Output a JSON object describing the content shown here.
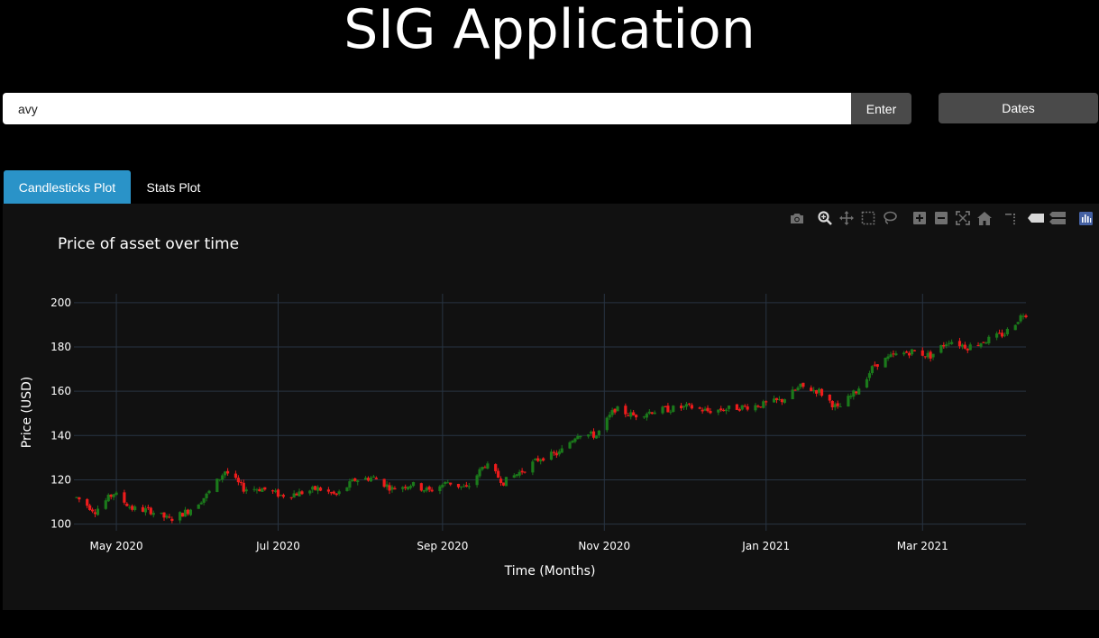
{
  "header": {
    "title": "SIG Application"
  },
  "search": {
    "value": "avy",
    "enter_label": "Enter"
  },
  "dates_button": {
    "label": "Dates"
  },
  "tabs": [
    {
      "label": "Candlesticks Plot",
      "active": true
    },
    {
      "label": "Stats Plot",
      "active": false
    }
  ],
  "colors": {
    "increasing": "#1b7a1b",
    "decreasing": "#ee1c1c",
    "tab_active": "#2a93c8",
    "plot_bg": "#111111",
    "grid": "#283442"
  },
  "modebar": {
    "icons": [
      "camera-icon",
      "zoom-icon",
      "pan-icon",
      "box-select-icon",
      "lasso-select-icon",
      "zoom-in-icon",
      "zoom-out-icon",
      "autoscale-icon",
      "reset-axes-icon",
      "spike-lines-icon",
      "hover-closest-icon",
      "hover-compare-icon",
      "plotly-logo-icon"
    ]
  },
  "chart_data": {
    "type": "candlestick",
    "title": "Price of asset over time",
    "xlabel": "Time (Months)",
    "ylabel": "Price (USD)",
    "x_tick_labels": [
      "May 2020",
      "Jul 2020",
      "Sep 2020",
      "Nov 2020",
      "Jan 2021",
      "Mar 2021"
    ],
    "x_tick_dates": [
      "2020-05-01",
      "2020-07-01",
      "2020-09-01",
      "2020-11-01",
      "2021-01-01",
      "2021-03-01"
    ],
    "y_ticks": [
      100,
      120,
      140,
      160,
      180,
      200
    ],
    "xlim": [
      "2020-04-15",
      "2021-04-09"
    ],
    "ylim": [
      97,
      204
    ],
    "grid": true,
    "legend": "none",
    "anchors": [
      [
        "2020-04-16",
        112
      ],
      [
        "2020-04-23",
        106
      ],
      [
        "2020-04-30",
        114
      ],
      [
        "2020-05-07",
        107
      ],
      [
        "2020-05-14",
        106
      ],
      [
        "2020-05-21",
        102
      ],
      [
        "2020-05-28",
        106
      ],
      [
        "2020-06-04",
        113
      ],
      [
        "2020-06-11",
        124
      ],
      [
        "2020-06-18",
        116
      ],
      [
        "2020-06-25",
        116
      ],
      [
        "2020-07-02",
        113
      ],
      [
        "2020-07-09",
        114
      ],
      [
        "2020-07-16",
        116
      ],
      [
        "2020-07-23",
        113
      ],
      [
        "2020-07-30",
        120
      ],
      [
        "2020-08-06",
        121
      ],
      [
        "2020-08-13",
        116
      ],
      [
        "2020-08-20",
        118
      ],
      [
        "2020-08-27",
        115
      ],
      [
        "2020-09-03",
        119
      ],
      [
        "2020-09-10",
        116
      ],
      [
        "2020-09-17",
        127
      ],
      [
        "2020-09-24",
        119
      ],
      [
        "2020-10-01",
        124
      ],
      [
        "2020-10-08",
        130
      ],
      [
        "2020-10-15",
        132
      ],
      [
        "2020-10-22",
        141
      ],
      [
        "2020-10-29",
        140
      ],
      [
        "2020-11-05",
        152
      ],
      [
        "2020-11-12",
        149
      ],
      [
        "2020-11-19",
        151
      ],
      [
        "2020-11-26",
        152
      ],
      [
        "2020-12-03",
        153
      ],
      [
        "2020-12-10",
        151
      ],
      [
        "2020-12-17",
        152
      ],
      [
        "2020-12-24",
        153
      ],
      [
        "2020-12-31",
        154
      ],
      [
        "2021-01-07",
        156
      ],
      [
        "2021-01-14",
        162
      ],
      [
        "2021-01-21",
        160
      ],
      [
        "2021-01-28",
        152
      ],
      [
        "2021-02-04",
        160
      ],
      [
        "2021-02-11",
        172
      ],
      [
        "2021-02-18",
        176
      ],
      [
        "2021-02-25",
        178
      ],
      [
        "2021-03-04",
        176
      ],
      [
        "2021-03-11",
        183
      ],
      [
        "2021-03-18",
        180
      ],
      [
        "2021-03-25",
        183
      ],
      [
        "2021-04-01",
        186
      ],
      [
        "2021-04-08",
        195
      ]
    ]
  }
}
